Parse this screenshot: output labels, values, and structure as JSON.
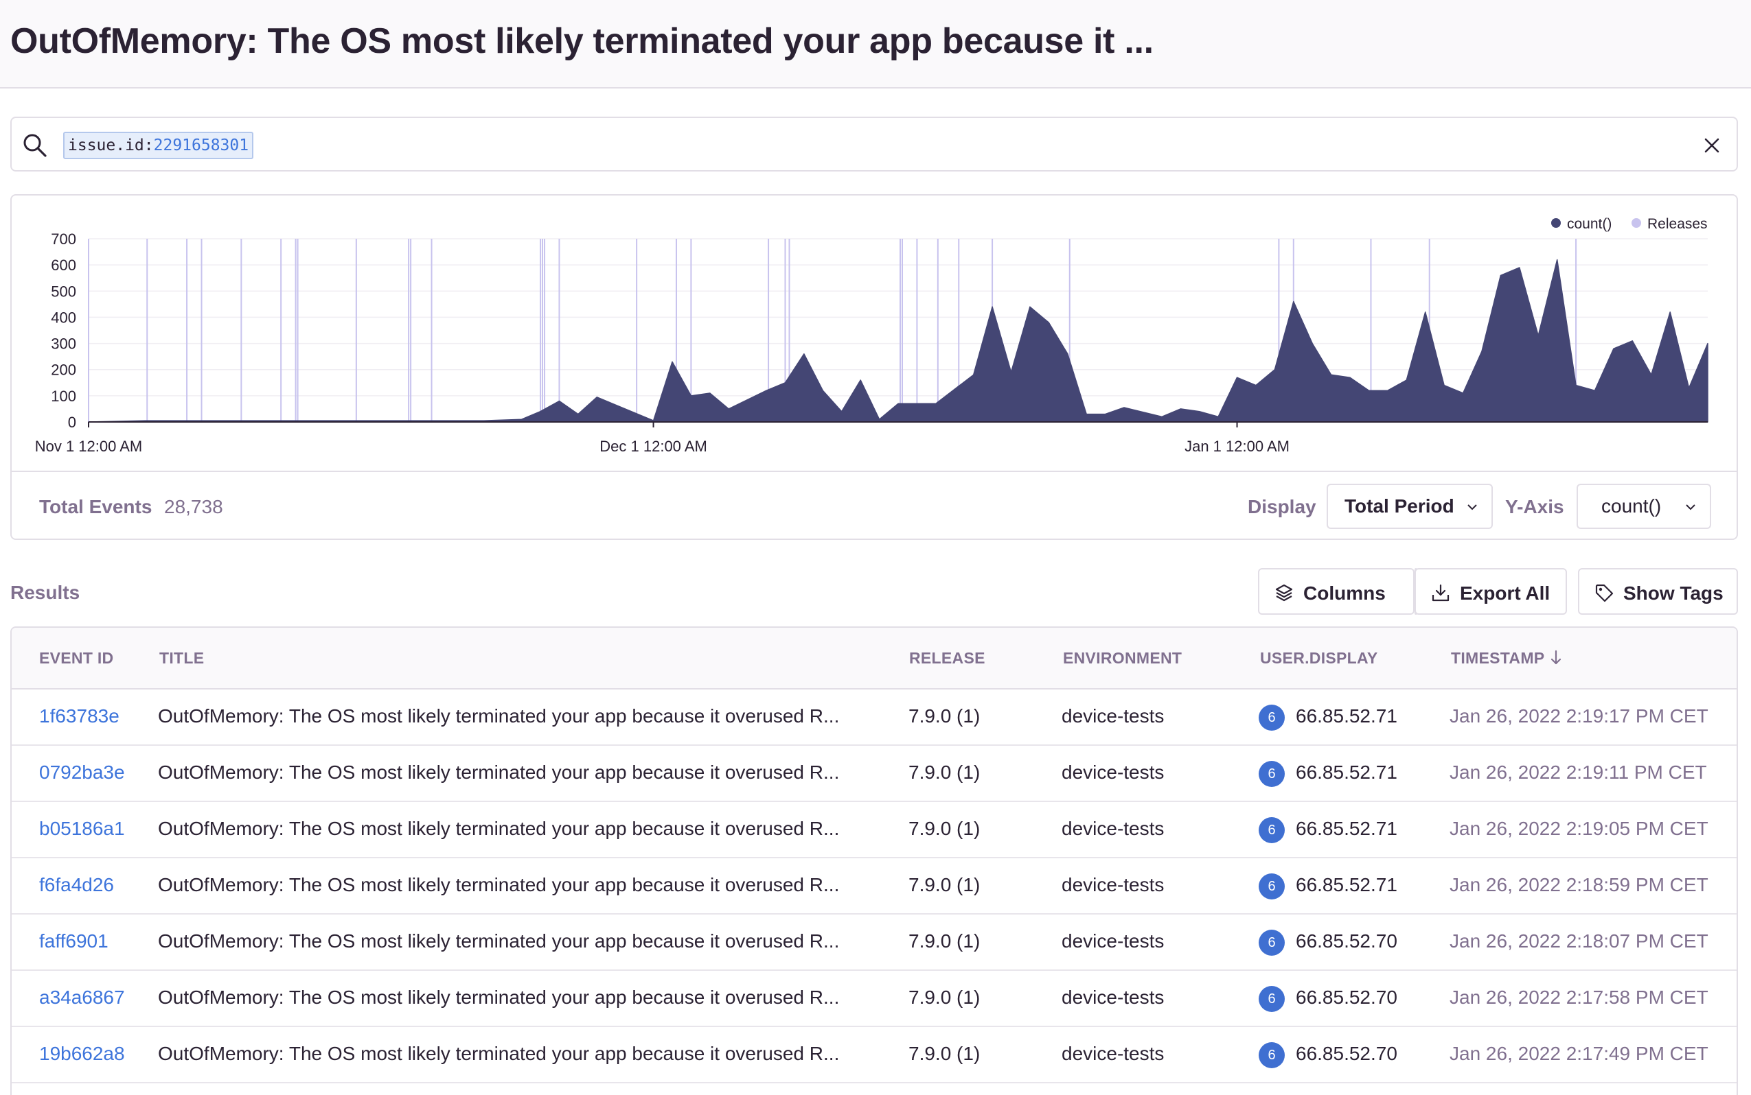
{
  "header": {
    "title": "OutOfMemory: The OS most likely terminated your app because it ..."
  },
  "search": {
    "token_key": "issue.id:",
    "token_value": "2291658301"
  },
  "chart_data": {
    "type": "area",
    "title": "",
    "xlabel": "",
    "ylabel": "",
    "ylim": [
      0,
      700
    ],
    "yticks": [
      0,
      100,
      200,
      300,
      400,
      500,
      600,
      700
    ],
    "xtick_labels": [
      "Nov 1 12:00 AM",
      "Dec 1 12:00 AM",
      "Jan 1 12:00 AM"
    ],
    "x_range": [
      "2021-11-01",
      "2022-01-26"
    ],
    "legend": {
      "placement": "top-right",
      "entries": [
        "count()",
        "Releases"
      ]
    },
    "colors": {
      "count": "#444674",
      "releases": "#c8c3ee"
    },
    "grid": true,
    "series": [
      {
        "name": "count()",
        "x": [
          "2021-11-01",
          "2021-11-04",
          "2021-11-09",
          "2021-11-15",
          "2021-11-18",
          "2021-11-22",
          "2021-11-24",
          "2021-11-25",
          "2021-11-26",
          "2021-11-27",
          "2021-11-28",
          "2021-12-01",
          "2021-12-02",
          "2021-12-03",
          "2021-12-04",
          "2021-12-05",
          "2021-12-07",
          "2021-12-08",
          "2021-12-09",
          "2021-12-10",
          "2021-12-11",
          "2021-12-12",
          "2021-12-13",
          "2021-12-14",
          "2021-12-16",
          "2021-12-18",
          "2021-12-19",
          "2021-12-20",
          "2021-12-21",
          "2021-12-22",
          "2021-12-23",
          "2021-12-24",
          "2021-12-25",
          "2021-12-26",
          "2021-12-28",
          "2021-12-29",
          "2021-12-30",
          "2021-12-31",
          "2022-01-01",
          "2022-01-02",
          "2022-01-03",
          "2022-01-04",
          "2022-01-05",
          "2022-01-06",
          "2022-01-07",
          "2022-01-08",
          "2022-01-09",
          "2022-01-10",
          "2022-01-11",
          "2022-01-12",
          "2022-01-13",
          "2022-01-14",
          "2022-01-15",
          "2022-01-16",
          "2022-01-17",
          "2022-01-18",
          "2022-01-19",
          "2022-01-20",
          "2022-01-21",
          "2022-01-22",
          "2022-01-23",
          "2022-01-24",
          "2022-01-25",
          "2022-01-26"
        ],
        "values": [
          0,
          5,
          5,
          5,
          5,
          5,
          10,
          40,
          80,
          30,
          95,
          5,
          230,
          100,
          110,
          50,
          120,
          150,
          260,
          120,
          40,
          160,
          10,
          70,
          70,
          180,
          440,
          190,
          440,
          380,
          260,
          30,
          30,
          55,
          20,
          50,
          40,
          20,
          170,
          140,
          200,
          460,
          300,
          180,
          170,
          120,
          120,
          160,
          420,
          140,
          110,
          270,
          560,
          590,
          330,
          620,
          140,
          120,
          280,
          310,
          180,
          420,
          130,
          300
        ]
      }
    ],
    "releases_x": [
      "2021-11-01",
      "2021-11-04",
      "2021-11-06",
      "2021-11-07",
      "2021-11-09",
      "2021-11-11",
      "2021-11-12",
      "2021-11-12",
      "2021-11-15",
      "2021-11-18",
      "2021-11-18",
      "2021-11-19",
      "2021-11-25",
      "2021-11-25",
      "2021-11-25",
      "2021-11-26",
      "2021-11-30",
      "2021-12-02",
      "2021-12-03",
      "2021-12-07",
      "2021-12-08",
      "2021-12-08",
      "2021-12-14",
      "2021-12-14",
      "2021-12-15",
      "2021-12-16",
      "2021-12-17",
      "2021-12-19",
      "2021-12-23",
      "2022-01-03",
      "2022-01-04",
      "2022-01-08",
      "2022-01-11",
      "2022-01-19"
    ]
  },
  "chart_footer": {
    "total_label": "Total Events",
    "total_value": "28,738",
    "display_label": "Display",
    "display_value": "Total Period",
    "yaxis_label": "Y-Axis",
    "yaxis_value": "count()"
  },
  "results": {
    "label": "Results",
    "buttons": {
      "columns": "Columns",
      "export": "Export All",
      "tags": "Show Tags"
    },
    "headers": {
      "event_id": "EVENT ID",
      "title": "TITLE",
      "release": "RELEASE",
      "environment": "ENVIRONMENT",
      "user": "USER.DISPLAY",
      "timestamp": "TIMESTAMP"
    },
    "rows": [
      {
        "event_id": "1f63783e",
        "title": "OutOfMemory: The OS most likely terminated your app because it overused R...",
        "release": "7.9.0 (1)",
        "environment": "device-tests",
        "avatar": "6",
        "user": "66.85.52.71",
        "timestamp": "Jan 26, 2022 2:19:17 PM CET"
      },
      {
        "event_id": "0792ba3e",
        "title": "OutOfMemory: The OS most likely terminated your app because it overused R...",
        "release": "7.9.0 (1)",
        "environment": "device-tests",
        "avatar": "6",
        "user": "66.85.52.71",
        "timestamp": "Jan 26, 2022 2:19:11 PM CET"
      },
      {
        "event_id": "b05186a1",
        "title": "OutOfMemory: The OS most likely terminated your app because it overused R...",
        "release": "7.9.0 (1)",
        "environment": "device-tests",
        "avatar": "6",
        "user": "66.85.52.71",
        "timestamp": "Jan 26, 2022 2:19:05 PM CET"
      },
      {
        "event_id": "f6fa4d26",
        "title": "OutOfMemory: The OS most likely terminated your app because it overused R...",
        "release": "7.9.0 (1)",
        "environment": "device-tests",
        "avatar": "6",
        "user": "66.85.52.71",
        "timestamp": "Jan 26, 2022 2:18:59 PM CET"
      },
      {
        "event_id": "faff6901",
        "title": "OutOfMemory: The OS most likely terminated your app because it overused R...",
        "release": "7.9.0 (1)",
        "environment": "device-tests",
        "avatar": "6",
        "user": "66.85.52.70",
        "timestamp": "Jan 26, 2022 2:18:07 PM CET"
      },
      {
        "event_id": "a34a6867",
        "title": "OutOfMemory: The OS most likely terminated your app because it overused R...",
        "release": "7.9.0 (1)",
        "environment": "device-tests",
        "avatar": "6",
        "user": "66.85.52.70",
        "timestamp": "Jan 26, 2022 2:17:58 PM CET"
      },
      {
        "event_id": "19b662a8",
        "title": "OutOfMemory: The OS most likely terminated your app because it overused R...",
        "release": "7.9.0 (1)",
        "environment": "device-tests",
        "avatar": "6",
        "user": "66.85.52.70",
        "timestamp": "Jan 26, 2022 2:17:49 PM CET"
      }
    ]
  }
}
